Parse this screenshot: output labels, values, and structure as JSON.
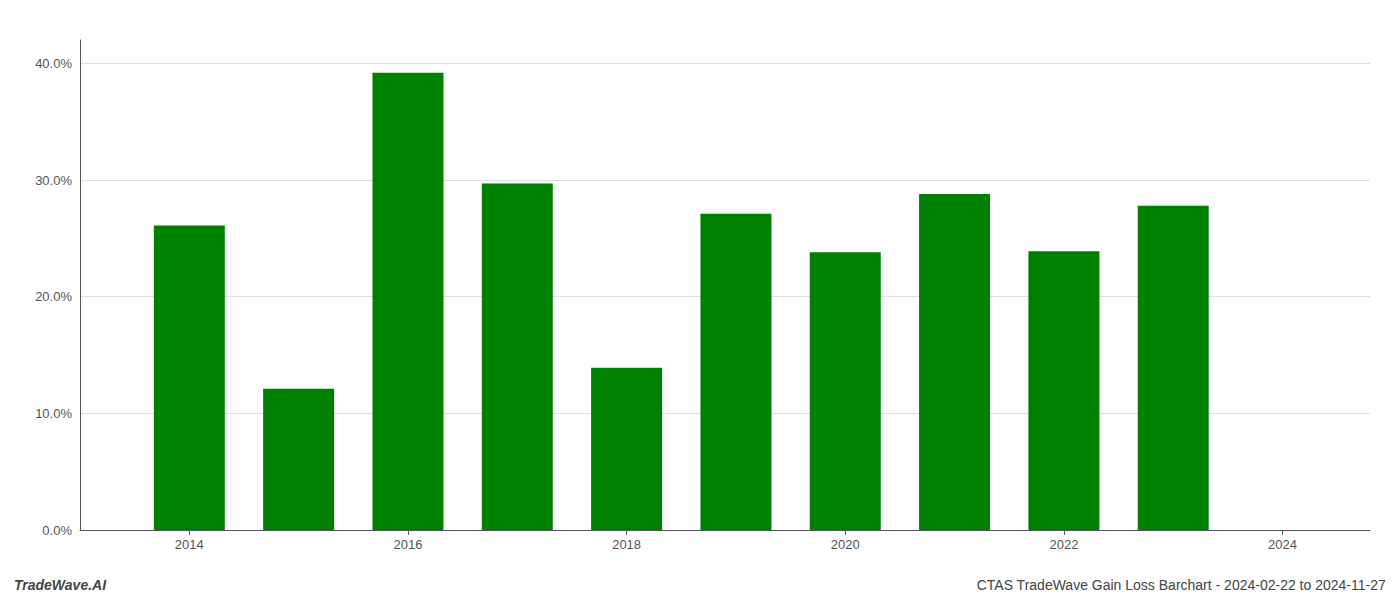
{
  "chart_data": {
    "type": "bar",
    "x": [
      2014,
      2015,
      2016,
      2017,
      2018,
      2019,
      2020,
      2021,
      2022,
      2023
    ],
    "values": [
      0.261,
      0.121,
      0.392,
      0.297,
      0.139,
      0.271,
      0.238,
      0.288,
      0.239,
      0.278
    ],
    "color": "#008000",
    "xlim": [
      2013.0,
      2024.8
    ],
    "xticks": [
      2014,
      2016,
      2018,
      2020,
      2022,
      2024
    ],
    "ylim": [
      0.0,
      0.42
    ],
    "yticks": [
      {
        "value": 0.0,
        "label": "0.0%"
      },
      {
        "value": 0.1,
        "label": "10.0%"
      },
      {
        "value": 0.2,
        "label": "20.0%"
      },
      {
        "value": 0.3,
        "label": "30.0%"
      },
      {
        "value": 0.4,
        "label": "40.0%"
      }
    ],
    "grid": true,
    "annotations": [
      "TradeWave.AI",
      "CTAS TradeWave Gain Loss Barchart - 2024-02-22 to 2024-11-27"
    ]
  }
}
